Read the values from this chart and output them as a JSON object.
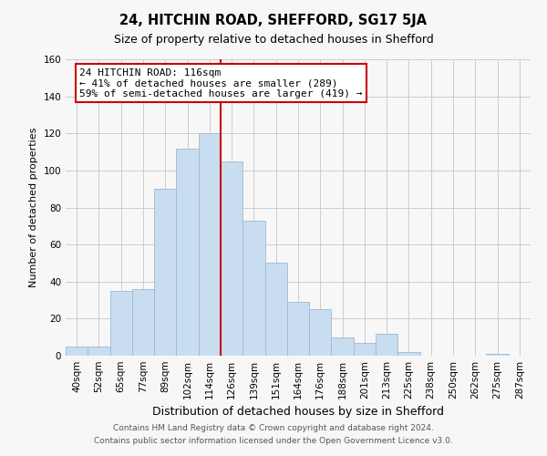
{
  "title": "24, HITCHIN ROAD, SHEFFORD, SG17 5JA",
  "subtitle": "Size of property relative to detached houses in Shefford",
  "xlabel": "Distribution of detached houses by size in Shefford",
  "ylabel": "Number of detached properties",
  "footer_line1": "Contains HM Land Registry data © Crown copyright and database right 2024.",
  "footer_line2": "Contains public sector information licensed under the Open Government Licence v3.0.",
  "bin_labels": [
    "40sqm",
    "52sqm",
    "65sqm",
    "77sqm",
    "89sqm",
    "102sqm",
    "114sqm",
    "126sqm",
    "139sqm",
    "151sqm",
    "164sqm",
    "176sqm",
    "188sqm",
    "201sqm",
    "213sqm",
    "225sqm",
    "238sqm",
    "250sqm",
    "262sqm",
    "275sqm",
    "287sqm"
  ],
  "bar_values": [
    5,
    5,
    35,
    36,
    90,
    112,
    120,
    105,
    73,
    50,
    29,
    25,
    10,
    7,
    12,
    2,
    0,
    0,
    0,
    1,
    0
  ],
  "bar_color": "#c9ddf0",
  "bar_edge_color": "#9bbad4",
  "ref_line_index": 7,
  "ref_line_color": "#cc0000",
  "ann_title": "24 HITCHIN ROAD: 116sqm",
  "ann_line1": "← 41% of detached houses are smaller (289)",
  "ann_line2": "59% of semi-detached houses are larger (419) →",
  "ann_box_facecolor": "#ffffff",
  "ann_box_edgecolor": "#cc0000",
  "ylim": [
    0,
    160
  ],
  "yticks": [
    0,
    20,
    40,
    60,
    80,
    100,
    120,
    140,
    160
  ],
  "grid_color": "#cccccc",
  "background_color": "#f7f7f7",
  "title_fontsize": 10.5,
  "subtitle_fontsize": 9,
  "ylabel_fontsize": 8,
  "xlabel_fontsize": 9,
  "tick_fontsize": 7.5,
  "ann_fontsize": 8,
  "footer_fontsize": 6.5
}
